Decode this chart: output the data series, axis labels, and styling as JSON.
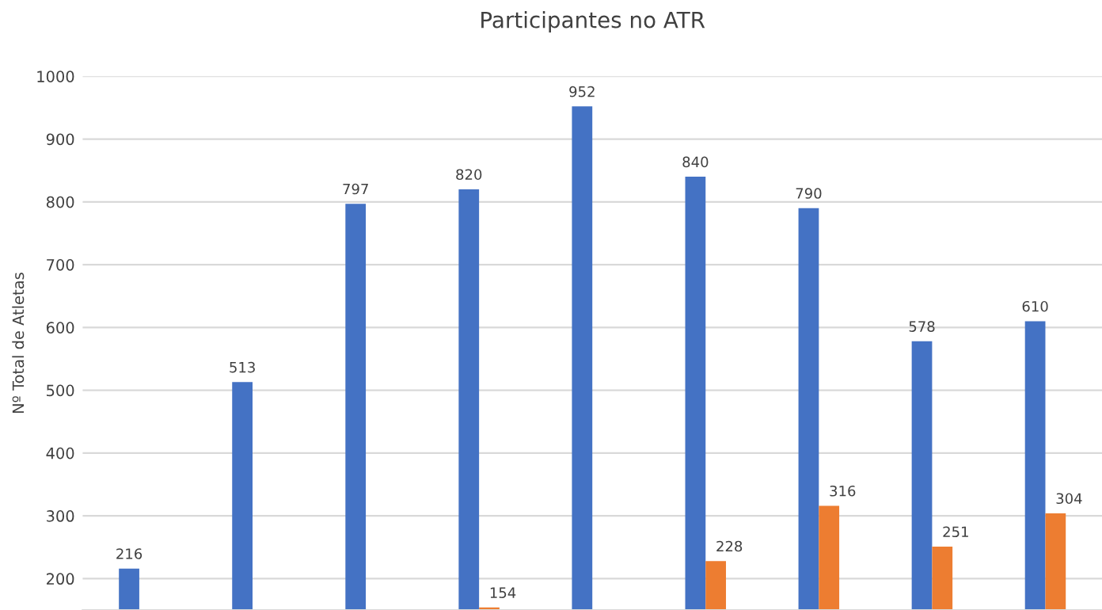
{
  "chart_data": {
    "type": "bar",
    "title": "Participantes no ATR",
    "ylabel": "Nº Total de Atletas",
    "categories": [
      null,
      null,
      null,
      null,
      null,
      null,
      null,
      null,
      null
    ],
    "series": [
      {
        "color": "#4472c4",
        "values": [
          216,
          513,
          797,
          820,
          952,
          840,
          790,
          578,
          610
        ]
      },
      {
        "color": "#ed7d31",
        "values": [
          null,
          null,
          null,
          154,
          null,
          228,
          316,
          251,
          304
        ]
      }
    ],
    "ylim": [
      150,
      1000
    ],
    "yticks": [
      200,
      300,
      400,
      500,
      600,
      700,
      800,
      900,
      1000
    ],
    "grid": "y",
    "tick_labels": "y",
    "data_labels": true
  }
}
